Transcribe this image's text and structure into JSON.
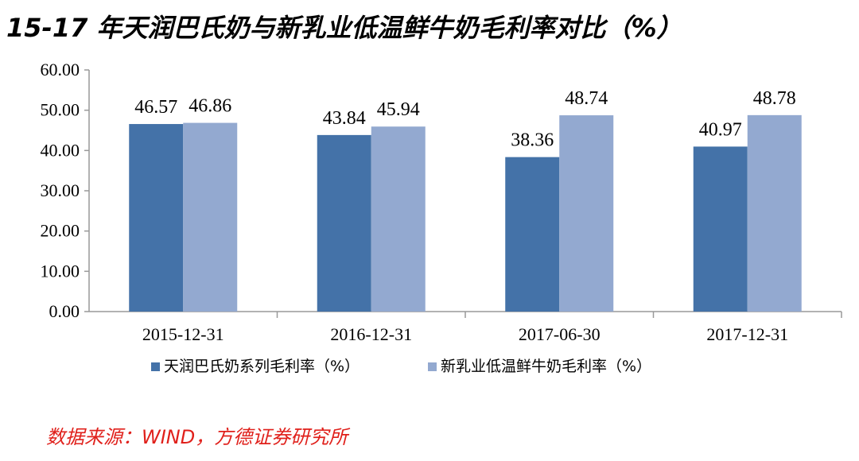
{
  "header": {
    "title": "15-17 年天润巴氏奶与新乳业低温鲜牛奶毛利率对比（%）"
  },
  "footer": {
    "source": "数据来源：WIND，方德证券研究所"
  },
  "chart_data": {
    "type": "bar",
    "title": "15-17 年天润巴氏奶与新乳业低温鲜牛奶毛利率对比（%）",
    "categories": [
      "2015-12-31",
      "2016-12-31",
      "2017-06-30",
      "2017-12-31"
    ],
    "series": [
      {
        "name": "天润巴氏奶系列毛利率（%）",
        "values": [
          46.57,
          43.84,
          38.36,
          40.97
        ],
        "color": "#4472a8"
      },
      {
        "name": "新乳业低温鲜牛奶毛利率（%）",
        "values": [
          46.86,
          45.94,
          48.74,
          48.78
        ],
        "color": "#93a9d0"
      }
    ],
    "y_ticks": [
      "0.00",
      "10.00",
      "20.00",
      "30.00",
      "40.00",
      "50.00",
      "60.00"
    ],
    "ylim": [
      0,
      60
    ],
    "xlabel": "",
    "ylabel": "",
    "grid": false,
    "legend_position": "bottom"
  }
}
